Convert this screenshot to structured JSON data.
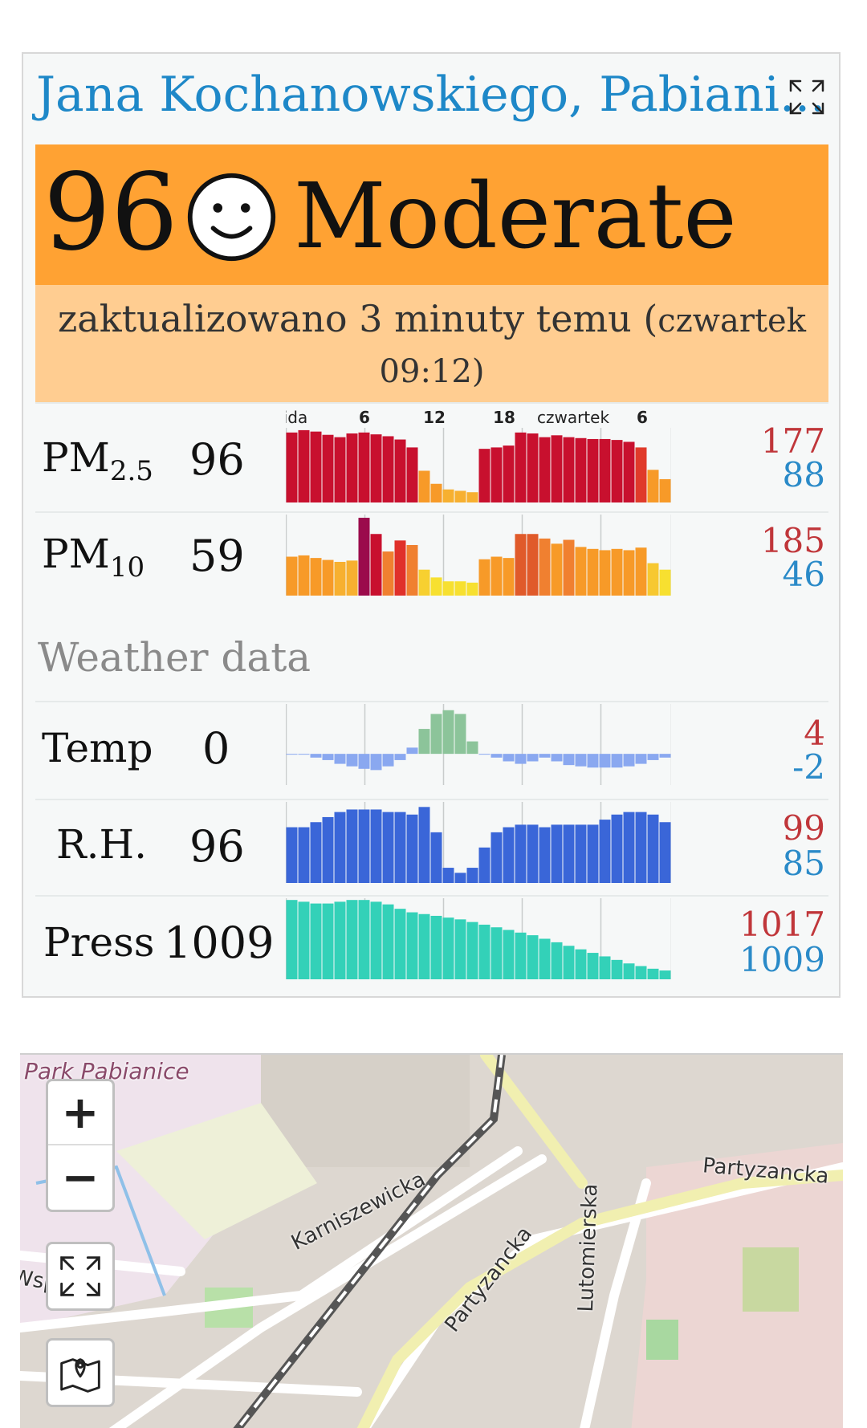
{
  "station": {
    "title": "Jana Kochanowskiego, Pabiani..."
  },
  "aqi": {
    "value": "96",
    "level": "Moderate",
    "color": "#ffa233",
    "updated_main": "zaktualizowano 3 minuty temu (",
    "updated_day": "czwartek",
    "updated_time": "09:12)"
  },
  "time_axis": {
    "labels": [
      "ida",
      "6",
      "12",
      "18",
      "czwartek",
      "6"
    ]
  },
  "metrics": [
    {
      "id": "pm25",
      "name": "PM",
      "sub": "2.5",
      "value": "96",
      "max": "177",
      "min": "88",
      "bars": [
        150,
        155,
        152,
        145,
        140,
        148,
        150,
        146,
        142,
        135,
        118,
        68,
        40,
        28,
        25,
        22,
        115,
        118,
        122,
        150,
        148,
        140,
        144,
        140,
        138,
        136,
        136,
        134,
        130,
        118,
        70,
        50
      ],
      "colors": [
        "#c8102e",
        "#c8102e",
        "#c8102e",
        "#c8102e",
        "#c8102e",
        "#c8102e",
        "#c8102e",
        "#c8102e",
        "#c8102e",
        "#c8102e",
        "#c8102e",
        "#f79a28",
        "#f79a28",
        "#f7b030",
        "#f7b030",
        "#f7b030",
        "#c8102e",
        "#c8102e",
        "#c8102e",
        "#c8102e",
        "#c8102e",
        "#c8102e",
        "#c8102e",
        "#c8102e",
        "#c8102e",
        "#c8102e",
        "#c8102e",
        "#c8102e",
        "#c8102e",
        "#e03a2a",
        "#f79a28",
        "#f79a28"
      ]
    },
    {
      "id": "pm10",
      "name": "PM",
      "sub": "10",
      "value": "59",
      "max": "185",
      "min": "46",
      "bars": [
        60,
        62,
        58,
        55,
        52,
        54,
        120,
        95,
        68,
        85,
        78,
        40,
        28,
        22,
        22,
        20,
        56,
        60,
        58,
        95,
        95,
        88,
        80,
        86,
        75,
        72,
        70,
        72,
        70,
        74,
        50,
        40
      ],
      "colors": [
        "#f79a28",
        "#f79a28",
        "#f79a28",
        "#f79a28",
        "#f7b030",
        "#f7b030",
        "#9b0b4c",
        "#c8102e",
        "#f08030",
        "#e0302a",
        "#f08030",
        "#f7d030",
        "#f7e030",
        "#f7e030",
        "#f7e030",
        "#f7e030",
        "#f79a28",
        "#f79a28",
        "#f79a28",
        "#e05a2a",
        "#e05a2a",
        "#f08030",
        "#f79a28",
        "#f08030",
        "#f79a28",
        "#f79a28",
        "#f79a28",
        "#f79a28",
        "#f79a28",
        "#f79a28",
        "#f7c830",
        "#f7e030"
      ]
    }
  ],
  "weather": {
    "heading": "Weather data",
    "temp": {
      "name": "Temp",
      "value": "0",
      "max": "4",
      "min": "-2",
      "bars": [
        0,
        0,
        -0.3,
        -0.5,
        -0.8,
        -1,
        -1.2,
        -1.3,
        -1,
        -0.5,
        0.5,
        2,
        3.2,
        3.5,
        3.2,
        1,
        0,
        -0.3,
        -0.6,
        -0.8,
        -0.6,
        -0.3,
        -0.6,
        -0.9,
        -1,
        -1.1,
        -1.1,
        -1.1,
        -1,
        -0.8,
        -0.5,
        -0.3
      ]
    },
    "rh": {
      "name": "R.H.",
      "value": "96",
      "max": "99",
      "min": "85",
      "bars": [
        95,
        95,
        96,
        97,
        98,
        98.5,
        98.5,
        98.5,
        98,
        98,
        97.5,
        99,
        94,
        87,
        86,
        87,
        91,
        94,
        95,
        95.5,
        95.5,
        95,
        95.5,
        95.5,
        95.5,
        95.5,
        96.5,
        97.5,
        98,
        98,
        97.5,
        96
      ]
    },
    "press": {
      "name": "Press",
      "value": "1009",
      "max": "1017",
      "min": "1009",
      "bars": [
        1017,
        1016.8,
        1016.6,
        1016.6,
        1016.8,
        1017,
        1017,
        1016.8,
        1016.5,
        1016,
        1015.6,
        1015.4,
        1015.2,
        1015,
        1014.8,
        1014.5,
        1014.2,
        1013.9,
        1013.6,
        1013.3,
        1013,
        1012.6,
        1012.2,
        1011.8,
        1011.4,
        1011,
        1010.6,
        1010.2,
        1009.8,
        1009.5,
        1009.2,
        1009
      ]
    }
  },
  "map": {
    "zoom_in_label": "+",
    "zoom_out_label": "−",
    "labels": {
      "park": "Park Pabianice",
      "karniszewicka": "Karniszewicka",
      "partyzancka_1": "Partyzancka",
      "partyzancka_2": "Partyzancka",
      "lutomierska": "Lutomierska",
      "wspolna": "Wspólna"
    }
  }
}
